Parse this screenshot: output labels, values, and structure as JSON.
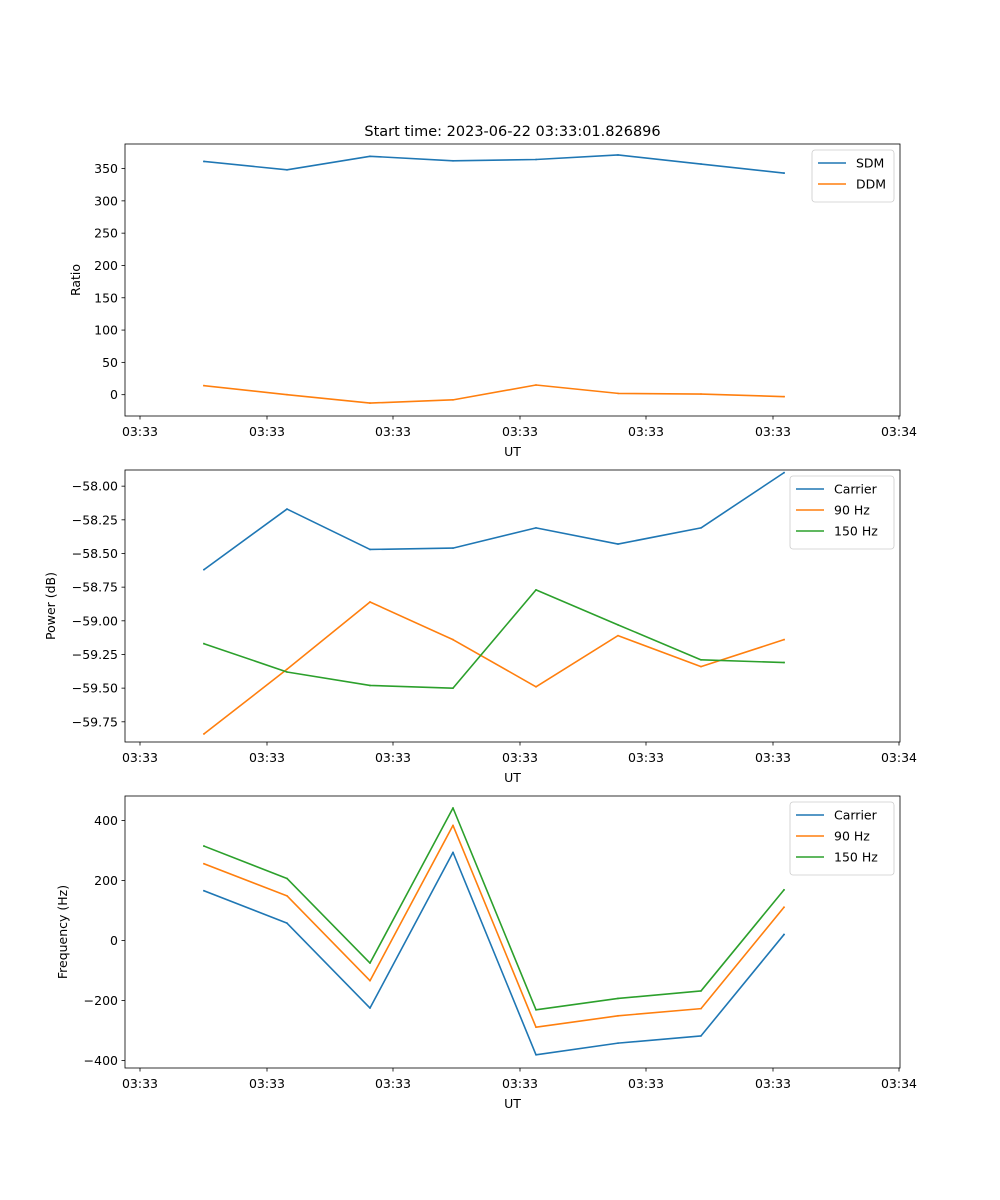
{
  "figure": {
    "title": "Start time: 2023-06-22 03:33:01.826896"
  },
  "chart_data": [
    {
      "type": "line",
      "xlabel": "UT",
      "ylabel": "Ratio",
      "x_ticks": [
        "03:33",
        "03:33",
        "03:33",
        "03:33",
        "03:33",
        "03:33",
        "03:33"
      ],
      "x_last_tick": "03:34",
      "ylim": [
        -33,
        388
      ],
      "y_ticks": [
        {
          "v": 350,
          "label": "350"
        },
        {
          "v": 300,
          "label": "300"
        },
        {
          "v": 250,
          "label": "250"
        },
        {
          "v": 200,
          "label": "200"
        },
        {
          "v": 150,
          "label": "150"
        },
        {
          "v": 100,
          "label": "100"
        },
        {
          "v": 50,
          "label": "50"
        },
        {
          "v": 0,
          "label": "0"
        }
      ],
      "legend_position": "top-right",
      "series": [
        {
          "name": "SDM",
          "color": "#1f77b4",
          "values": [
            361,
            348,
            369,
            362,
            364,
            371,
            357,
            343
          ]
        },
        {
          "name": "DDM",
          "color": "#ff7f0e",
          "values": [
            14,
            0,
            -13,
            -8,
            15,
            2,
            1,
            -3
          ]
        }
      ]
    },
    {
      "type": "line",
      "xlabel": "UT",
      "ylabel": "Power (dB)",
      "x_ticks": [
        "03:33",
        "03:33",
        "03:33",
        "03:33",
        "03:33",
        "03:33",
        "03:33"
      ],
      "x_last_tick": "03:34",
      "ylim": [
        -59.9,
        -57.88
      ],
      "y_ticks": [
        {
          "v": -58.0,
          "label": "−58.00"
        },
        {
          "v": -58.25,
          "label": "−58.25"
        },
        {
          "v": -58.5,
          "label": "−58.50"
        },
        {
          "v": -58.75,
          "label": "−58.75"
        },
        {
          "v": -59.0,
          "label": "−59.00"
        },
        {
          "v": -59.25,
          "label": "−59.25"
        },
        {
          "v": -59.5,
          "label": "−59.50"
        },
        {
          "v": -59.75,
          "label": "−59.75"
        }
      ],
      "legend_position": "top-right",
      "series": [
        {
          "name": "Carrier",
          "color": "#1f77b4",
          "values": [
            -58.62,
            -58.17,
            -58.47,
            -58.46,
            -58.31,
            -58.43,
            -58.31,
            -57.9
          ]
        },
        {
          "name": "90 Hz",
          "color": "#ff7f0e",
          "values": [
            -59.84,
            -59.36,
            -58.86,
            -59.14,
            -59.49,
            -59.11,
            -59.34,
            -59.14
          ]
        },
        {
          "name": "150 Hz",
          "color": "#2ca02c",
          "values": [
            -59.17,
            -59.38,
            -59.48,
            -59.5,
            -58.77,
            -59.03,
            -59.29,
            -59.31
          ]
        }
      ]
    },
    {
      "type": "line",
      "xlabel": "UT",
      "ylabel": "Frequency (Hz)",
      "x_ticks": [
        "03:33",
        "03:33",
        "03:33",
        "03:33",
        "03:33",
        "03:33",
        "03:33"
      ],
      "x_last_tick": "03:34",
      "ylim": [
        -425,
        482
      ],
      "y_ticks": [
        {
          "v": 400,
          "label": "400"
        },
        {
          "v": 200,
          "label": "200"
        },
        {
          "v": 0,
          "label": "0"
        },
        {
          "v": -200,
          "label": "−200"
        },
        {
          "v": -400,
          "label": "−400"
        }
      ],
      "legend_position": "top-right",
      "series": [
        {
          "name": "Carrier",
          "color": "#1f77b4",
          "values": [
            166,
            58,
            -225,
            294,
            -381,
            -342,
            -318,
            20
          ]
        },
        {
          "name": "90 Hz",
          "color": "#ff7f0e",
          "values": [
            256,
            149,
            -134,
            384,
            -289,
            -251,
            -227,
            111
          ]
        },
        {
          "name": "150 Hz",
          "color": "#2ca02c",
          "values": [
            315,
            207,
            -75,
            442,
            -231,
            -193,
            -168,
            169
          ]
        }
      ]
    }
  ]
}
